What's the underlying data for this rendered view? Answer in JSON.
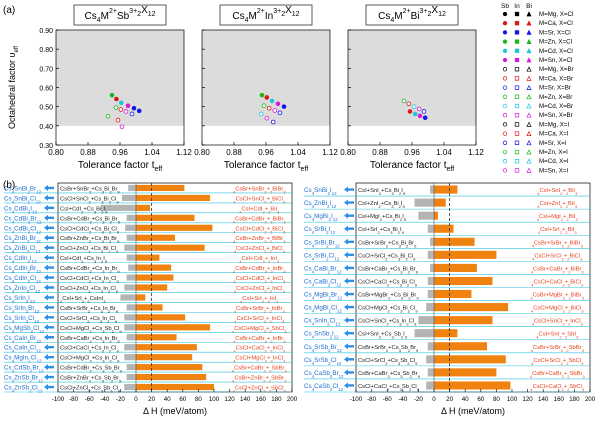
{
  "panel_labels": {
    "a": "(a)",
    "b": "(b)"
  },
  "top_axes": {
    "xlabel_pre": "Tolerance factor t",
    "xlabel_sub": "eff",
    "ylabel_pre": "Octahedral factor υ",
    "ylabel_sub": "eff",
    "xticks": [
      "0.80",
      "0.88",
      "0.96",
      "1.04",
      "1.12"
    ],
    "yticks": [
      "0.30",
      "0.40",
      "0.50",
      "0.60",
      "0.70",
      "0.80",
      "0.90"
    ],
    "xlim": [
      0.8,
      1.12
    ],
    "ylim": [
      0.3,
      0.9
    ],
    "shade": {
      "x": [
        0.8,
        1.12
      ],
      "y": [
        0.4,
        0.9
      ]
    }
  },
  "top_panels": [
    {
      "title_parts": [
        "Cs",
        "4",
        "M",
        "2+",
        "Sb",
        "3+",
        "2",
        "X",
        "12"
      ]
    },
    {
      "title_parts": [
        "Cs",
        "4",
        "M",
        "2+",
        "In",
        "3+",
        "2",
        "X",
        "12"
      ]
    },
    {
      "title_parts": [
        "Cs",
        "4",
        "M",
        "2+",
        "Bi",
        "3+",
        "2",
        "X",
        "12"
      ]
    }
  ],
  "legend": {
    "header": [
      "Sb",
      "In",
      "Bi"
    ],
    "entries": [
      {
        "label": "M=Mg, X=Cl",
        "color": "#000000",
        "filled": true
      },
      {
        "label": "M=Ca, X=Cl",
        "color": "#e0161b",
        "filled": true
      },
      {
        "label": "M=Sr, X=Cl",
        "color": "#1515e8",
        "filled": true
      },
      {
        "label": "M=Zn, X=Cl",
        "color": "#19b619",
        "filled": true
      },
      {
        "label": "M=Cd, X=Cl",
        "color": "#19c8d8",
        "filled": true
      },
      {
        "label": "M=Sn, X=Cl",
        "color": "#d81ad8",
        "filled": true
      },
      {
        "label": "M=Mg, X=Br",
        "color": "#000000",
        "filled": false
      },
      {
        "label": "M=Ca, X=Br",
        "color": "#e0161b",
        "filled": false
      },
      {
        "label": "M=Sr, X=Br",
        "color": "#1515e8",
        "filled": false
      },
      {
        "label": "M=Zn, X=Br",
        "color": "#19b619",
        "filled": false
      },
      {
        "label": "M=Cd, X=Br",
        "color": "#19c8d8",
        "filled": false
      },
      {
        "label": "M=Sn, X=Br",
        "color": "#d81ad8",
        "filled": false
      },
      {
        "label": "M=Mg, X=I",
        "color": "#000000",
        "filled": false
      },
      {
        "label": "M=Ca, X=I",
        "color": "#e0161b",
        "filled": false
      },
      {
        "label": "M=Sr, X=I",
        "color": "#1515e8",
        "filled": false
      },
      {
        "label": "M=Zn, X=I",
        "color": "#19b619",
        "filled": false
      },
      {
        "label": "M=Cd, X=I",
        "color": "#19c8d8",
        "filled": false
      },
      {
        "label": "M=Sn, X=I",
        "color": "#d81ad8",
        "filled": false
      }
    ]
  },
  "bottom_axes": {
    "xlabel": "Δ H (meV/atom)",
    "xticks_left": [
      "-100",
      "-80",
      "-60",
      "-40",
      "-20",
      "0",
      "20",
      "40",
      "60",
      "80",
      "100",
      "120",
      "140",
      "160",
      "180",
      "200"
    ],
    "xticks_right": [
      "-100",
      "-80",
      "-60",
      "-40",
      "-20",
      "0",
      "20",
      "40",
      "60",
      "80",
      "100",
      "120",
      "140",
      "160",
      "180",
      "200"
    ],
    "xlim": [
      -100,
      200
    ],
    "dashed_line": 20
  },
  "chart_data": [
    {
      "type": "scatter",
      "panel": "Cs4M2+Sb3+2X12",
      "xlabel": "Tolerance factor t eff",
      "ylabel": "Octahedral factor υ eff",
      "xlim": [
        0.8,
        1.12
      ],
      "ylim": [
        0.3,
        0.9
      ],
      "points": [
        {
          "x": 0.94,
          "y": 0.56,
          "color": "#19b619",
          "filled": true
        },
        {
          "x": 0.951,
          "y": 0.54,
          "color": "#e0161b",
          "filled": true
        },
        {
          "x": 0.963,
          "y": 0.52,
          "color": "#19c8d8",
          "filled": true
        },
        {
          "x": 0.98,
          "y": 0.505,
          "color": "#d81ad8",
          "filled": true
        },
        {
          "x": 0.995,
          "y": 0.492,
          "color": "#1515e8",
          "filled": true
        },
        {
          "x": 1.008,
          "y": 0.478,
          "color": "#1515e8",
          "filled": true
        },
        {
          "x": 0.95,
          "y": 0.495,
          "color": "#19b619",
          "filled": false
        },
        {
          "x": 0.962,
          "y": 0.485,
          "color": "#e0161b",
          "filled": false
        },
        {
          "x": 0.975,
          "y": 0.475,
          "color": "#d81ad8",
          "filled": false
        },
        {
          "x": 0.99,
          "y": 0.462,
          "color": "#1515e8",
          "filled": false
        },
        {
          "x": 0.93,
          "y": 0.45,
          "color": "#19b619",
          "filled": false
        },
        {
          "x": 0.955,
          "y": 0.43,
          "color": "#e0161b",
          "filled": false
        },
        {
          "x": 0.965,
          "y": 0.395,
          "color": "#d81ad8",
          "filled": false
        }
      ]
    },
    {
      "type": "scatter",
      "panel": "Cs4M2+In3+2X12",
      "xlabel": "Tolerance factor t eff",
      "ylabel": "Octahedral factor υ eff",
      "xlim": [
        0.8,
        1.12
      ],
      "ylim": [
        0.3,
        0.9
      ],
      "points": [
        {
          "x": 0.95,
          "y": 0.56,
          "color": "#19b619",
          "filled": true
        },
        {
          "x": 0.962,
          "y": 0.548,
          "color": "#e0161b",
          "filled": true
        },
        {
          "x": 0.975,
          "y": 0.53,
          "color": "#19c8d8",
          "filled": true
        },
        {
          "x": 0.99,
          "y": 0.515,
          "color": "#d81ad8",
          "filled": true
        },
        {
          "x": 1.005,
          "y": 0.5,
          "color": "#1515e8",
          "filled": true
        },
        {
          "x": 0.955,
          "y": 0.505,
          "color": "#19b619",
          "filled": false
        },
        {
          "x": 0.968,
          "y": 0.492,
          "color": "#e0161b",
          "filled": false
        },
        {
          "x": 0.982,
          "y": 0.48,
          "color": "#d81ad8",
          "filled": false
        },
        {
          "x": 0.995,
          "y": 0.468,
          "color": "#1515e8",
          "filled": false
        },
        {
          "x": 0.948,
          "y": 0.462,
          "color": "#19c8d8",
          "filled": false
        },
        {
          "x": 0.962,
          "y": 0.44,
          "color": "#d81ad8",
          "filled": false
        },
        {
          "x": 0.978,
          "y": 0.42,
          "color": "#1515e8",
          "filled": false
        }
      ]
    },
    {
      "type": "scatter",
      "panel": "Cs4M2+Bi3+2X12",
      "xlabel": "Tolerance factor t eff",
      "ylabel": "Octahedral factor υ eff",
      "xlim": [
        0.8,
        1.12
      ],
      "ylim": [
        0.3,
        0.9
      ],
      "points": [
        {
          "x": 0.94,
          "y": 0.53,
          "color": "#19b619",
          "filled": false
        },
        {
          "x": 0.952,
          "y": 0.515,
          "color": "#e0161b",
          "filled": false
        },
        {
          "x": 0.965,
          "y": 0.5,
          "color": "#19c8d8",
          "filled": false
        },
        {
          "x": 0.978,
          "y": 0.488,
          "color": "#d81ad8",
          "filled": false
        },
        {
          "x": 0.99,
          "y": 0.475,
          "color": "#1515e8",
          "filled": false
        },
        {
          "x": 0.955,
          "y": 0.475,
          "color": "#e0161b",
          "filled": true
        },
        {
          "x": 0.968,
          "y": 0.462,
          "color": "#19c8d8",
          "filled": true
        },
        {
          "x": 0.98,
          "y": 0.452,
          "color": "#d81ad8",
          "filled": true
        },
        {
          "x": 0.993,
          "y": 0.442,
          "color": "#1515e8",
          "filled": true
        }
      ]
    },
    {
      "type": "bar",
      "orientation": "horizontal",
      "panel": "b-left",
      "xlabel": "Δ H (meV/atom)",
      "xlim": [
        -100,
        200
      ],
      "dashed_at": 20,
      "rows": [
        {
          "compound": "Cs4SnBi2Br12",
          "reaction": "CsBr+SnBr2+Cs3Bi2Br9",
          "competitor": "4CsBr+SnBr2+2BiBr3",
          "gray": -10,
          "orange": 62
        },
        {
          "compound": "Cs4SnBi2Cl12",
          "reaction": "CsCl+SnCl2+Cs3Bi2Cl9",
          "competitor": "4CsCl+SnCl2+2BiCl3",
          "gray": -18,
          "orange": 95
        },
        {
          "compound": "Cs4CdBi2I12",
          "reaction": "CsI+CdI2+Cs3Bi2I9",
          "competitor": "4CsI+CdI2+2BiI3",
          "gray": -45,
          "orange": 18
        },
        {
          "compound": "Cs4CdBi2Br12",
          "reaction": "CsBr+CdBr2+Cs3Bi2Br9",
          "competitor": "4CsBr+CdBr2+2BiBr3",
          "gray": -12,
          "orange": 75
        },
        {
          "compound": "Cs4CdBi2Cl12",
          "reaction": "CsCl+CdCl2+Cs3Bi2Cl9",
          "competitor": "4CsCl+CdCl2+2BiCl3",
          "gray": -14,
          "orange": 98
        },
        {
          "compound": "Cs4ZnBi2Br12",
          "reaction": "CsBr+ZnBr2+Cs3Bi2Br9",
          "competitor": "4CsBr+ZnBr2+2BiBr3",
          "gray": -12,
          "orange": 50
        },
        {
          "compound": "Cs4ZnBi2Cl12",
          "reaction": "CsCl+ZnCl2+Cs3Bi2Cl9",
          "competitor": "4CsCl+ZnCl2+2BiCl3",
          "gray": -15,
          "orange": 88
        },
        {
          "compound": "Cs4CdIn2I12",
          "reaction": "CsI+CdI2+Cs3In2I9",
          "competitor": "4CsI+CdI2+2InI3",
          "gray": -12,
          "orange": 30
        },
        {
          "compound": "Cs4CdIn2Br12",
          "reaction": "CsBr+CdBr2+Cs3In2Br9",
          "competitor": "4CsBr+CdBr2+2InBr3",
          "gray": -10,
          "orange": 45
        },
        {
          "compound": "Cs4CdIn2Cl12",
          "reaction": "CsCl+CdCl2+Cs3In2Cl9",
          "competitor": "4CsCl+CdCl2+2InCl3",
          "gray": -12,
          "orange": 48
        },
        {
          "compound": "Cs4ZnIn2Cl12",
          "reaction": "CsCl+ZnCl2+Cs3In2Cl9",
          "competitor": "4CsCl+ZnCl2+2InCl3",
          "gray": -15,
          "orange": 40
        },
        {
          "compound": "Cs4SrIn2I12",
          "reaction": "2CsI+SrI2+2CsInI3",
          "competitor": "4CsI+SrI2+2InI3",
          "gray": -20,
          "orange": 12
        },
        {
          "compound": "Cs4SrIn2Br12",
          "reaction": "CsBr+SrBr2+Cs3In2Br9",
          "competitor": "4CsBr+SrBr2+2InBr3",
          "gray": -12,
          "orange": 34
        },
        {
          "compound": "Cs4SrIn2Cl12",
          "reaction": "CsCl+SrCl2+Cs3In2Cl9",
          "competitor": "4CsCl+SrCl2+2InCl3",
          "gray": -15,
          "orange": 63
        },
        {
          "compound": "Cs4MgSb2Cl12",
          "reaction": "CsCl+MgCl2+Cs3Sb2Cl9",
          "competitor": "4CsCl+MgCl2+2SbCl3",
          "gray": -15,
          "orange": 95
        },
        {
          "compound": "Cs4CaIn2Br12",
          "reaction": "CsBr+CaBr2+Cs3In2Br9",
          "competitor": "4CsBr+CaBr2+2InBr3",
          "gray": -12,
          "orange": 52
        },
        {
          "compound": "Cs4CaIn2Cl12",
          "reaction": "CsCl+CaCl2+Cs3In2Cl9",
          "competitor": "4CsCl+CaCl2+2InCl3",
          "gray": -15,
          "orange": 78
        },
        {
          "compound": "Cs4MgIn2Cl12",
          "reaction": "CsCl+MgCl2+Cs3In2Cl9",
          "competitor": "4CsCl+MgCl2+2InCl3",
          "gray": -15,
          "orange": 72
        },
        {
          "compound": "Cs4CdSb2Br12",
          "reaction": "CsBr+CdBr2+Cs3Sb2Br9",
          "competitor": "4CsBr+CdBr2+2SbBr3",
          "gray": -12,
          "orange": 85
        },
        {
          "compound": "Cs4ZnSb2Br12",
          "reaction": "CsBr+ZnBr2+Cs3Sb2Br9",
          "competitor": "4CsBr+ZnBr2+2SbBr3",
          "gray": -12,
          "orange": 90
        },
        {
          "compound": "Cs4ZnSb2Cl12",
          "reaction": "CsCl+ZnCl2+Cs3Sb2Cl9",
          "competitor": "4CsCl+ZnCl2+2SbCl3",
          "gray": -15,
          "orange": 100
        }
      ]
    },
    {
      "type": "bar",
      "orientation": "horizontal",
      "panel": "b-right",
      "xlabel": "Δ H (meV/atom)",
      "xlim": [
        -100,
        200
      ],
      "dashed_at": 20,
      "rows": [
        {
          "compound": "Cs4SnBi2I12",
          "reaction": "CsI+SnI2+Cs3Bi2I9",
          "competitor": "4CsI+SnI2+2BiI3",
          "gray": -5,
          "orange": 30
        },
        {
          "compound": "Cs4ZnBi2I12",
          "reaction": "CsI+ZnI2+Cs3Bi2I9",
          "competitor": "4CsI+ZnI2+2BiI3",
          "gray": -25,
          "orange": 15
        },
        {
          "compound": "Cs4MgBi2I12",
          "reaction": "CsI+MgI2+Cs3Bi2I9",
          "competitor": "4CsI+MgI2+2BiI3",
          "gray": -20,
          "orange": 5
        },
        {
          "compound": "Cs4SrBi2I12",
          "reaction": "CsI+SrI2+Cs3Bi2I9",
          "competitor": "4CsI+SrI2+2BiI3",
          "gray": -8,
          "orange": 25
        },
        {
          "compound": "Cs4SrBi2Br12",
          "reaction": "CsBr+SrBr2+Cs3Bi2Br9",
          "competitor": "4CsBr+SrBr2+2BiBr3",
          "gray": -5,
          "orange": 52
        },
        {
          "compound": "Cs4SrBi2Cl12",
          "reaction": "CsCl+SrCl2+Cs3Bi2Cl9",
          "competitor": "4CsCl+SrCl2+2BiCl3",
          "gray": -8,
          "orange": 80
        },
        {
          "compound": "Cs4CaBi2Br12",
          "reaction": "CsBr+CaBr2+Cs3Bi2Br9",
          "competitor": "4CsBr+CaBr2+2BiBr3",
          "gray": -5,
          "orange": 55
        },
        {
          "compound": "Cs4CaBi2Cl12",
          "reaction": "CsCl+CaCl2+Cs3Bi2Cl9",
          "competitor": "4CsCl+CaCl2+2BiCl3",
          "gray": -8,
          "orange": 75
        },
        {
          "compound": "Cs4MgBi2Br12",
          "reaction": "CsBr+MgBr2+Cs3Bi2Br9",
          "competitor": "4CsBr+MgBr2+2BiBr3",
          "gray": -8,
          "orange": 48
        },
        {
          "compound": "Cs4MgBi2Cl12",
          "reaction": "CsCl+MgCl2+Cs3Bi2Cl9",
          "competitor": "4CsCl+MgCl2+2BiCl3",
          "gray": -10,
          "orange": 95
        },
        {
          "compound": "Cs4SnIn2Cl12",
          "reaction": "CsCl+SnCl2+Cs3In2Cl9",
          "competitor": "4CsCl+SnCl2+2InCl3",
          "gray": -20,
          "orange": 75
        },
        {
          "compound": "Cs4SnSb2I12",
          "reaction": "CsI+SnI2+Cs3Sb2I9",
          "competitor": "4CsI+SnI2+2SbI3",
          "gray": -25,
          "orange": 30
        },
        {
          "compound": "Cs4SrSb2Br12",
          "reaction": "CsBr+SrBr2+Cs3Sb2Br9",
          "competitor": "4CsBr+SrBr2+2SbBr3",
          "gray": -8,
          "orange": 68
        },
        {
          "compound": "Cs4SrSb2Cl12",
          "reaction": "CsCl+SrCl2+Cs3Sb2Cl9",
          "competitor": "4CsCl+SrCl2+2SbCl3",
          "gray": -10,
          "orange": 92
        },
        {
          "compound": "Cs4CaSb2Br12",
          "reaction": "CsBr+CaBr2+Cs3Sb2Br9",
          "competitor": "4CsBr+CaBr2+2SbBr3",
          "gray": -8,
          "orange": 80
        },
        {
          "compound": "Cs4CaSb2Cl12",
          "reaction": "CsCl+CaCl2+Cs3Sb2Cl9",
          "competitor": "4CsCl+CaCl2+2SbCl3",
          "gray": -10,
          "orange": 98
        }
      ]
    }
  ],
  "colors": {
    "bar_orange": "#f0820f",
    "bar_gray": "#b4b4b4",
    "row_line": "#2ec4e0",
    "compound_text": "#1f6fd0",
    "competitor_text": "#e8401a",
    "arrow": "#2e8fe6",
    "shade": "#dcdcdc"
  }
}
